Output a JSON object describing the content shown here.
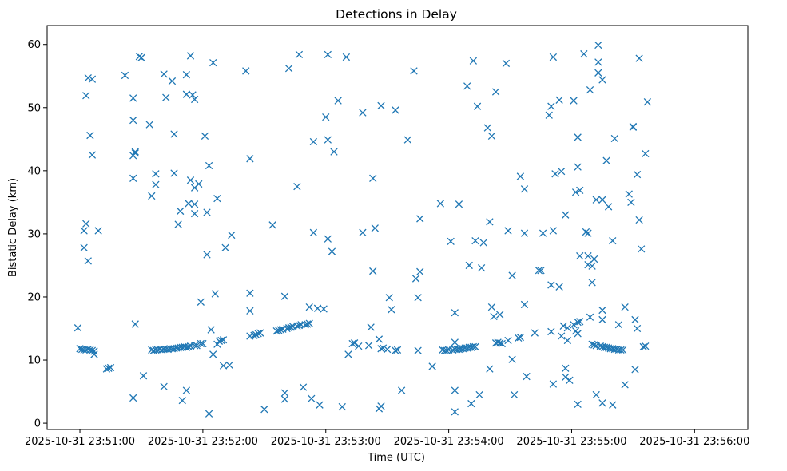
{
  "chart_data": {
    "type": "scatter",
    "title": "Detections in Delay",
    "xlabel": "Time (UTC)",
    "ylabel": "Bistatic Delay (km)",
    "marker": "x",
    "color": "#1f77b4",
    "grid": false,
    "x_unit": "seconds after 2025-10-31 23:51:00",
    "xlim": [
      -16,
      326
    ],
    "ylim": [
      -1,
      63
    ],
    "x_ticks": [
      {
        "value": 0,
        "label": "2025-10-31 23:51:00"
      },
      {
        "value": 60,
        "label": "2025-10-31 23:52:00"
      },
      {
        "value": 120,
        "label": "2025-10-31 23:53:00"
      },
      {
        "value": 180,
        "label": "2025-10-31 23:54:00"
      },
      {
        "value": 240,
        "label": "2025-10-31 23:55:00"
      },
      {
        "value": 300,
        "label": "2025-10-31 23:56:00"
      }
    ],
    "y_ticks": [
      {
        "value": 0,
        "label": "0"
      },
      {
        "value": 10,
        "label": "10"
      },
      {
        "value": 20,
        "label": "20"
      },
      {
        "value": 30,
        "label": "30"
      },
      {
        "value": 40,
        "label": "40"
      },
      {
        "value": 50,
        "label": "50"
      },
      {
        "value": 60,
        "label": "60"
      }
    ],
    "points": [
      [
        -1,
        15.1
      ],
      [
        0,
        11.8
      ],
      [
        1,
        11.7
      ],
      [
        2,
        11.6
      ],
      [
        3,
        11.6
      ],
      [
        4,
        11.7
      ],
      [
        5,
        11.6
      ],
      [
        6,
        11.5
      ],
      [
        7,
        11.4
      ],
      [
        7,
        10.9
      ],
      [
        2,
        30.5
      ],
      [
        3,
        31.6
      ],
      [
        2,
        27.8
      ],
      [
        4,
        25.7
      ],
      [
        3,
        51.9
      ],
      [
        4,
        54.7
      ],
      [
        6,
        54.5
      ],
      [
        5,
        45.6
      ],
      [
        6,
        42.5
      ],
      [
        9,
        30.5
      ],
      [
        13,
        8.6
      ],
      [
        14,
        8.7
      ],
      [
        15,
        8.8
      ],
      [
        22,
        55.1
      ],
      [
        26,
        51.5
      ],
      [
        26,
        48.0
      ],
      [
        27,
        43.0
      ],
      [
        26,
        42.4
      ],
      [
        27,
        42.8
      ],
      [
        26,
        38.8
      ],
      [
        27,
        15.7
      ],
      [
        26,
        4.0
      ],
      [
        29,
        58.1
      ],
      [
        30,
        57.9
      ],
      [
        31,
        7.5
      ],
      [
        34,
        47.3
      ],
      [
        35,
        36.0
      ],
      [
        37,
        39.5
      ],
      [
        37,
        37.8
      ],
      [
        35,
        11.6
      ],
      [
        36,
        11.5
      ],
      [
        37,
        11.6
      ],
      [
        38,
        11.6
      ],
      [
        39,
        11.7
      ],
      [
        40,
        11.6
      ],
      [
        41,
        11.7
      ],
      [
        42,
        11.7
      ],
      [
        43,
        11.7
      ],
      [
        44,
        11.8
      ],
      [
        45,
        11.8
      ],
      [
        46,
        11.8
      ],
      [
        47,
        11.9
      ],
      [
        48,
        11.9
      ],
      [
        49,
        12.0
      ],
      [
        50,
        12.0
      ],
      [
        51,
        12.1
      ],
      [
        52,
        12.0
      ],
      [
        53,
        12.1
      ],
      [
        54,
        12.2
      ],
      [
        56,
        12.3
      ],
      [
        57,
        12.3
      ],
      [
        41,
        55.3
      ],
      [
        42,
        51.6
      ],
      [
        41,
        5.8
      ],
      [
        45,
        54.2
      ],
      [
        46,
        39.6
      ],
      [
        46,
        45.8
      ],
      [
        48,
        31.5
      ],
      [
        49,
        33.6
      ],
      [
        50,
        3.6
      ],
      [
        52,
        5.2
      ],
      [
        52,
        52.1
      ],
      [
        52,
        55.2
      ],
      [
        53,
        34.8
      ],
      [
        54,
        38.5
      ],
      [
        54,
        58.2
      ],
      [
        55,
        52.0
      ],
      [
        56,
        51.3
      ],
      [
        56,
        37.3
      ],
      [
        56,
        34.7
      ],
      [
        56,
        33.2
      ],
      [
        58,
        37.9
      ],
      [
        59,
        12.6
      ],
      [
        60,
        12.6
      ],
      [
        59,
        19.2
      ],
      [
        61,
        45.5
      ],
      [
        62,
        33.4
      ],
      [
        62,
        26.7
      ],
      [
        63,
        40.8
      ],
      [
        63,
        1.5
      ],
      [
        64,
        14.8
      ],
      [
        65,
        10.9
      ],
      [
        65,
        57.1
      ],
      [
        66,
        20.5
      ],
      [
        67,
        35.6
      ],
      [
        67,
        12.5
      ],
      [
        68,
        13.0
      ],
      [
        69,
        13.1
      ],
      [
        70,
        13.2
      ],
      [
        70,
        9.1
      ],
      [
        71,
        27.8
      ],
      [
        73,
        9.2
      ],
      [
        74,
        29.8
      ],
      [
        81,
        55.8
      ],
      [
        83,
        41.9
      ],
      [
        83,
        20.6
      ],
      [
        83,
        17.8
      ],
      [
        83,
        13.8
      ],
      [
        85,
        13.9
      ],
      [
        86,
        14.0
      ],
      [
        87,
        14.2
      ],
      [
        88,
        14.3
      ],
      [
        90,
        2.2
      ],
      [
        94,
        31.4
      ],
      [
        96,
        14.6
      ],
      [
        97,
        14.7
      ],
      [
        98,
        14.8
      ],
      [
        99,
        14.9
      ],
      [
        100,
        20.1
      ],
      [
        100,
        4.8
      ],
      [
        100,
        3.8
      ],
      [
        101,
        15.0
      ],
      [
        102,
        15.1
      ],
      [
        102,
        56.2
      ],
      [
        103,
        15.2
      ],
      [
        104,
        15.3
      ],
      [
        106,
        15.4
      ],
      [
        106,
        37.5
      ],
      [
        107,
        58.4
      ],
      [
        107,
        15.5
      ],
      [
        108,
        15.6
      ],
      [
        109,
        5.7
      ],
      [
        110,
        15.6
      ],
      [
        111,
        15.7
      ],
      [
        112,
        15.8
      ],
      [
        112,
        18.4
      ],
      [
        113,
        3.9
      ],
      [
        114,
        30.2
      ],
      [
        114,
        44.6
      ],
      [
        116,
        18.2
      ],
      [
        117,
        2.9
      ],
      [
        119,
        18.1
      ],
      [
        120,
        48.5
      ],
      [
        121,
        29.2
      ],
      [
        121,
        44.9
      ],
      [
        121,
        58.4
      ],
      [
        123,
        27.2
      ],
      [
        124,
        43.0
      ],
      [
        126,
        51.1
      ],
      [
        128,
        2.6
      ],
      [
        130,
        58.0
      ],
      [
        131,
        10.9
      ],
      [
        133,
        12.6
      ],
      [
        134,
        12.7
      ],
      [
        136,
        12.2
      ],
      [
        138,
        49.2
      ],
      [
        138,
        30.2
      ],
      [
        141,
        12.3
      ],
      [
        142,
        15.2
      ],
      [
        143,
        38.8
      ],
      [
        143,
        24.1
      ],
      [
        144,
        30.9
      ],
      [
        146,
        13.3
      ],
      [
        147,
        11.8
      ],
      [
        146,
        2.3
      ],
      [
        147,
        2.7
      ],
      [
        147,
        50.3
      ],
      [
        148,
        11.9
      ],
      [
        150,
        11.7
      ],
      [
        151,
        19.9
      ],
      [
        152,
        18.0
      ],
      [
        154,
        49.6
      ],
      [
        154,
        11.5
      ],
      [
        155,
        11.6
      ],
      [
        157,
        5.2
      ],
      [
        160,
        44.9
      ],
      [
        163,
        55.8
      ],
      [
        165,
        11.5
      ],
      [
        164,
        22.9
      ],
      [
        165,
        19.9
      ],
      [
        166,
        24.0
      ],
      [
        166,
        32.4
      ],
      [
        172,
        9.0
      ],
      [
        176,
        34.8
      ],
      [
        177,
        11.6
      ],
      [
        178,
        11.5
      ],
      [
        179,
        11.5
      ],
      [
        180,
        11.6
      ],
      [
        181,
        28.8
      ],
      [
        182,
        11.6
      ],
      [
        183,
        11.7
      ],
      [
        184,
        11.7
      ],
      [
        185,
        11.7
      ],
      [
        186,
        11.8
      ],
      [
        187,
        11.8
      ],
      [
        188,
        11.9
      ],
      [
        189,
        11.9
      ],
      [
        190,
        12.0
      ],
      [
        191,
        12.0
      ],
      [
        192,
        12.1
      ],
      [
        193,
        12.1
      ],
      [
        183,
        12.8
      ],
      [
        183,
        17.5
      ],
      [
        183,
        5.2
      ],
      [
        183,
        1.8
      ],
      [
        185,
        34.7
      ],
      [
        189,
        53.4
      ],
      [
        190,
        25.0
      ],
      [
        191,
        3.1
      ],
      [
        192,
        57.4
      ],
      [
        193,
        28.9
      ],
      [
        194,
        50.2
      ],
      [
        195,
        4.5
      ],
      [
        196,
        24.6
      ],
      [
        197,
        28.6
      ],
      [
        199,
        46.8
      ],
      [
        200,
        31.9
      ],
      [
        200,
        8.6
      ],
      [
        201,
        45.5
      ],
      [
        201,
        18.4
      ],
      [
        202,
        16.9
      ],
      [
        203,
        52.5
      ],
      [
        203,
        12.7
      ],
      [
        204,
        12.8
      ],
      [
        205,
        12.7
      ],
      [
        205,
        17.2
      ],
      [
        206,
        12.6
      ],
      [
        208,
        57.0
      ],
      [
        209,
        30.5
      ],
      [
        209,
        13.1
      ],
      [
        211,
        23.4
      ],
      [
        211,
        10.1
      ],
      [
        212,
        4.5
      ],
      [
        214,
        13.5
      ],
      [
        215,
        13.6
      ],
      [
        215,
        39.1
      ],
      [
        217,
        37.1
      ],
      [
        217,
        30.1
      ],
      [
        217,
        18.8
      ],
      [
        218,
        7.4
      ],
      [
        222,
        14.3
      ],
      [
        224,
        24.2
      ],
      [
        225,
        24.2
      ],
      [
        226,
        30.1
      ],
      [
        229,
        48.8
      ],
      [
        230,
        50.2
      ],
      [
        231,
        58.0
      ],
      [
        230,
        14.5
      ],
      [
        230,
        21.9
      ],
      [
        231,
        6.2
      ],
      [
        231,
        30.5
      ],
      [
        232,
        39.5
      ],
      [
        234,
        51.2
      ],
      [
        234,
        21.6
      ],
      [
        235,
        39.9
      ],
      [
        235,
        13.8
      ],
      [
        236,
        15.4
      ],
      [
        237,
        33.0
      ],
      [
        237,
        8.7
      ],
      [
        237,
        7.3
      ],
      [
        238,
        15.1
      ],
      [
        238,
        13.1
      ],
      [
        239,
        6.8
      ],
      [
        241,
        15.6
      ],
      [
        241,
        51.1
      ],
      [
        242,
        14.6
      ],
      [
        242,
        36.6
      ],
      [
        243,
        16.0
      ],
      [
        243,
        40.6
      ],
      [
        243,
        45.3
      ],
      [
        243,
        14.2
      ],
      [
        243,
        3.0
      ],
      [
        244,
        16.1
      ],
      [
        244,
        26.5
      ],
      [
        244,
        36.9
      ],
      [
        246,
        58.5
      ],
      [
        247,
        30.3
      ],
      [
        248,
        30.1
      ],
      [
        248,
        26.5
      ],
      [
        248,
        25.1
      ],
      [
        249,
        52.8
      ],
      [
        249,
        16.8
      ],
      [
        250,
        12.5
      ],
      [
        250,
        22.3
      ],
      [
        250,
        24.9
      ],
      [
        251,
        12.4
      ],
      [
        251,
        26.0
      ],
      [
        252,
        12.3
      ],
      [
        252,
        35.4
      ],
      [
        252,
        4.5
      ],
      [
        253,
        59.9
      ],
      [
        253,
        57.2
      ],
      [
        253,
        55.5
      ],
      [
        254,
        12.2
      ],
      [
        255,
        12.1
      ],
      [
        255,
        54.4
      ],
      [
        255,
        35.4
      ],
      [
        255,
        17.9
      ],
      [
        255,
        16.4
      ],
      [
        255,
        3.2
      ],
      [
        256,
        12.0
      ],
      [
        257,
        12.0
      ],
      [
        257,
        41.6
      ],
      [
        258,
        11.9
      ],
      [
        258,
        34.3
      ],
      [
        259,
        11.8
      ],
      [
        260,
        11.8
      ],
      [
        261,
        11.7
      ],
      [
        262,
        11.7
      ],
      [
        263,
        11.6
      ],
      [
        264,
        11.6
      ],
      [
        265,
        11.6
      ],
      [
        260,
        28.9
      ],
      [
        260,
        2.9
      ],
      [
        261,
        45.1
      ],
      [
        263,
        15.6
      ],
      [
        266,
        18.4
      ],
      [
        266,
        6.1
      ],
      [
        268,
        36.3
      ],
      [
        269,
        35.0
      ],
      [
        270,
        47.0
      ],
      [
        270,
        46.9
      ],
      [
        271,
        16.4
      ],
      [
        271,
        8.5
      ],
      [
        272,
        39.4
      ],
      [
        272,
        15.0
      ],
      [
        273,
        57.8
      ],
      [
        273,
        32.2
      ],
      [
        274,
        27.6
      ],
      [
        275,
        12.1
      ],
      [
        276,
        12.2
      ],
      [
        276,
        42.7
      ],
      [
        277,
        50.9
      ]
    ]
  }
}
